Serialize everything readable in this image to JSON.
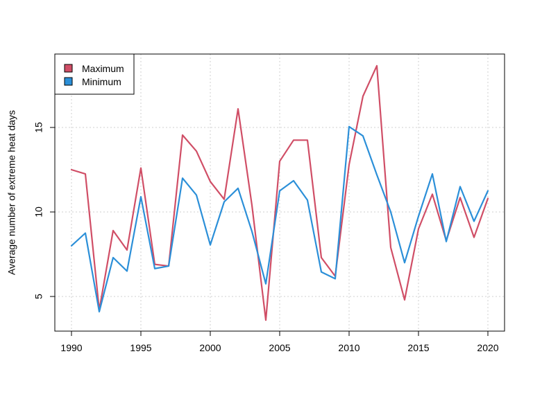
{
  "chart_data": {
    "type": "line",
    "title": "",
    "xlabel": "",
    "ylabel": "Average number of extreme heat days",
    "xlim": [
      1990,
      2020
    ],
    "ylim": [
      3.5,
      18.7
    ],
    "x_ticks": [
      1990,
      1995,
      2000,
      2005,
      2010,
      2015,
      2020
    ],
    "y_ticks": [
      5,
      10,
      15
    ],
    "grid": true,
    "legend_position": "top-left",
    "x": [
      1990,
      1991,
      1992,
      1993,
      1994,
      1995,
      1996,
      1997,
      1998,
      1999,
      2000,
      2001,
      2002,
      2003,
      2004,
      2005,
      2006,
      2007,
      2008,
      2009,
      2010,
      2011,
      2012,
      2013,
      2014,
      2015,
      2016,
      2017,
      2018,
      2019,
      2020
    ],
    "series": [
      {
        "name": "Maximum",
        "color": "#d04e66",
        "values": [
          12.5,
          12.25,
          4.2,
          8.9,
          7.75,
          12.6,
          6.9,
          6.8,
          14.55,
          13.6,
          11.8,
          10.75,
          16.1,
          10.4,
          3.6,
          13.0,
          14.25,
          14.25,
          7.3,
          6.2,
          12.8,
          16.85,
          18.65,
          7.9,
          4.8,
          9.0,
          11.05,
          8.3,
          10.85,
          8.5,
          10.8
        ]
      },
      {
        "name": "Minimum",
        "color": "#2b8fd8",
        "values": [
          8.0,
          8.75,
          4.1,
          7.3,
          6.5,
          10.9,
          6.65,
          6.8,
          12.0,
          11.0,
          8.05,
          10.6,
          11.4,
          8.85,
          5.75,
          11.25,
          11.85,
          10.7,
          6.45,
          6.05,
          15.05,
          14.5,
          12.2,
          10.0,
          7.0,
          9.75,
          12.25,
          8.25,
          11.5,
          9.45,
          11.25
        ]
      }
    ]
  }
}
